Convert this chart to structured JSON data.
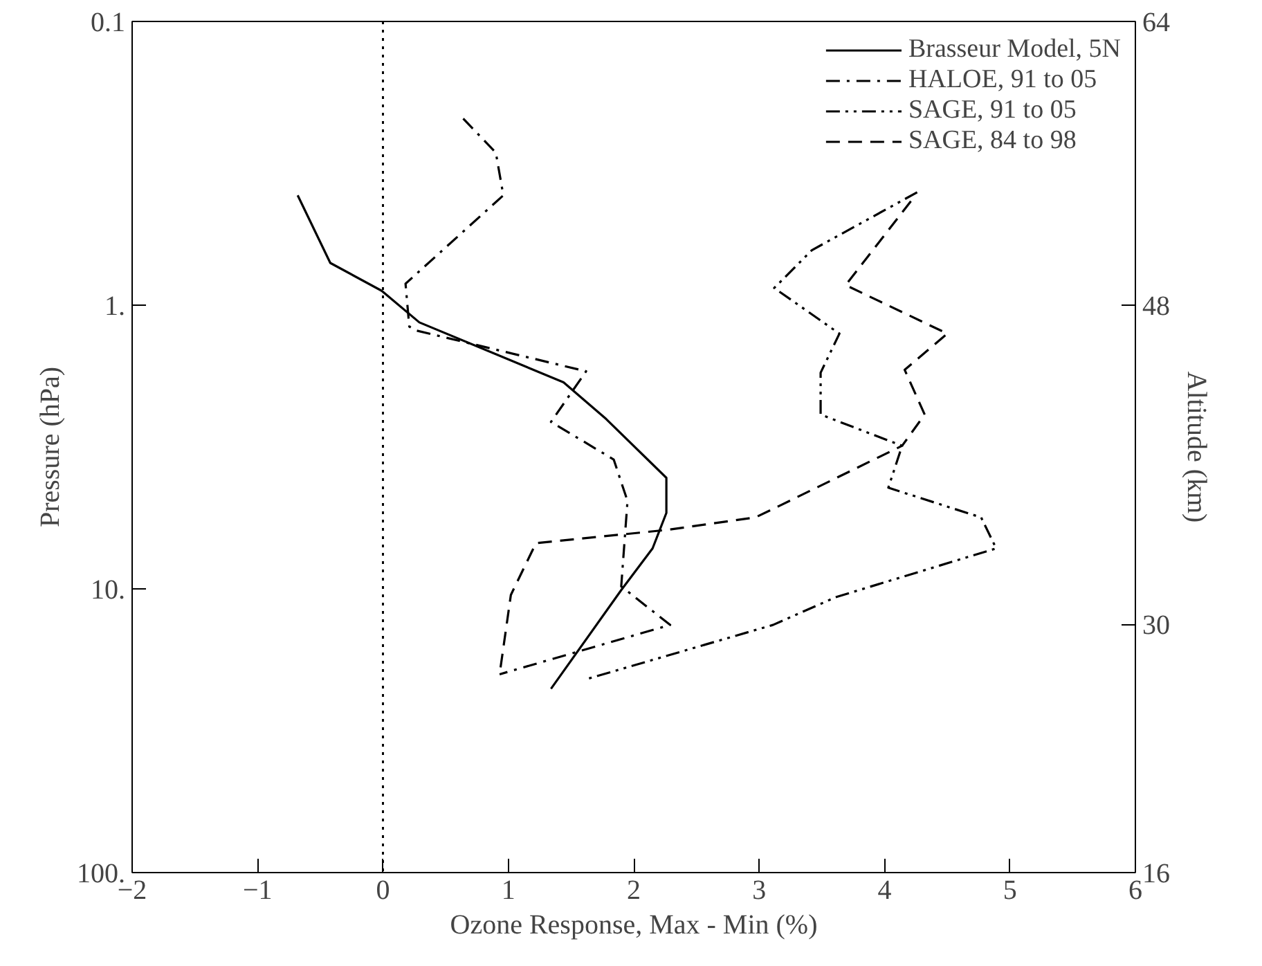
{
  "chart_data": {
    "type": "line",
    "xlabel": "Ozone Response, Max - Min (%)",
    "ylabel": "Pressure (hPa)",
    "y2label": "Altitude (km)",
    "xlim": [
      -2,
      6
    ],
    "xticks": [
      -2,
      -1,
      0,
      1,
      2,
      3,
      4,
      5,
      6
    ],
    "ylim": [
      100,
      0.1
    ],
    "yticks": [
      {
        "value": 0.1,
        "label": "0.1"
      },
      {
        "value": 1,
        "label": "1."
      },
      {
        "value": 10,
        "label": "10."
      },
      {
        "value": 100,
        "label": "100."
      }
    ],
    "y2lim": [
      16,
      64
    ],
    "y2ticks": [
      16,
      30,
      48,
      64
    ],
    "log": "y",
    "grid": false,
    "legend": "top right",
    "marker": "none",
    "ref_lines": [
      {
        "axis": "x",
        "value": 0,
        "line_style": "dotted",
        "color": "#000000"
      }
    ],
    "series": [
      {
        "name": "Brasseur Model, 5N",
        "color": "#000000",
        "line_style": "solid",
        "x": [
          -0.68,
          -0.42,
          -0.01,
          0.29,
          1.44,
          1.78,
          2.26,
          2.26,
          2.15,
          1.9,
          1.34
        ],
        "values": [
          0.41,
          0.71,
          0.89,
          1.15,
          1.87,
          2.52,
          4.06,
          5.4,
          7.2,
          10.1,
          22.5
        ]
      },
      {
        "name": "HALOE, 91 to 05",
        "color": "#000000",
        "line_style": "dashdot",
        "x": [
          0.64,
          0.9,
          0.96,
          0.18,
          0.21,
          0.27,
          1.62,
          1.34,
          1.84,
          1.95,
          1.9,
          2.29,
          0.93
        ],
        "values": [
          0.22,
          0.29,
          0.41,
          0.84,
          1.19,
          1.23,
          1.71,
          2.58,
          3.5,
          4.9,
          9.8,
          13.4,
          20.0
        ]
      },
      {
        "name": "SAGE, 91 to 05",
        "color": "#000000",
        "line_style": "dashdotdot",
        "x": [
          4.26,
          3.42,
          3.12,
          3.64,
          3.49,
          3.49,
          4.14,
          4.03,
          4.77,
          4.89,
          3.61,
          3.11,
          1.64
        ],
        "values": [
          0.4,
          0.64,
          0.87,
          1.26,
          1.73,
          2.43,
          3.13,
          4.4,
          5.6,
          7.2,
          10.7,
          13.4,
          20.7
        ]
      },
      {
        "name": "SAGE, 84 to 98",
        "color": "#000000",
        "line_style": "dashed",
        "x": [
          4.21,
          3.69,
          4.5,
          4.16,
          4.32,
          4.14,
          3.16,
          2.97,
          2.26,
          1.22,
          1.02,
          0.93
        ],
        "values": [
          0.43,
          0.85,
          1.26,
          1.69,
          2.43,
          3.13,
          5.1,
          5.6,
          6.2,
          6.9,
          10.5,
          20.0
        ]
      }
    ]
  }
}
